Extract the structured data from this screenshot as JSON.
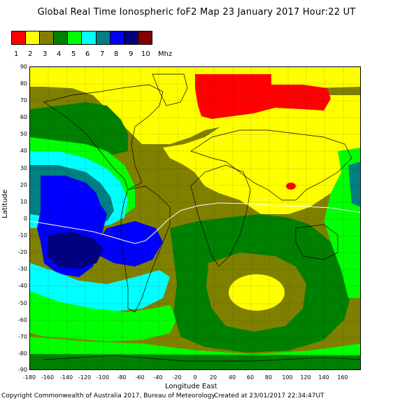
{
  "title": "Global Real Time Ionospheric foF2 Map  23 January 2017 Hour:22 UT",
  "legend": {
    "labels": [
      "1",
      "2",
      "3",
      "4",
      "5",
      "6",
      "7",
      "8",
      "9",
      "10"
    ],
    "unit": "Mhz",
    "colors": [
      "#ff0000",
      "#ffff00",
      "#808000",
      "#008000",
      "#00ff00",
      "#00ffff",
      "#008080",
      "#0000ff",
      "#000080",
      "#800000"
    ]
  },
  "axes": {
    "ylabel": "Latitude",
    "xlabel": "Longitude East",
    "yticks": [
      "90",
      "80",
      "70",
      "60",
      "50",
      "40",
      "30",
      "20",
      "10",
      "0",
      "-10",
      "-20",
      "-30",
      "-40",
      "-50",
      "-60",
      "-70",
      "-80",
      "-90"
    ],
    "xticks": [
      "-180",
      "-160",
      "-140",
      "-120",
      "-100",
      "-80",
      "-60",
      "-40",
      "-20",
      "0",
      "20",
      "40",
      "60",
      "80",
      "100",
      "120",
      "140",
      "160"
    ]
  },
  "footer": {
    "copyright": "Copyright Commonwealth of Australia 2017, Bureau of Meteorology",
    "created": "Created at 23/01/2017 22:34:47UT"
  },
  "chart_data": {
    "type": "heatmap",
    "title": "Global Real Time Ionospheric foF2 Map  23 January 2017 Hour:22 UT",
    "xlabel": "Longitude East",
    "ylabel": "Latitude",
    "xlim": [
      -180,
      180
    ],
    "ylim": [
      -90,
      90
    ],
    "unit": "Mhz",
    "levels": [
      1,
      2,
      3,
      4,
      5,
      6,
      7,
      8,
      9,
      10
    ]
  }
}
